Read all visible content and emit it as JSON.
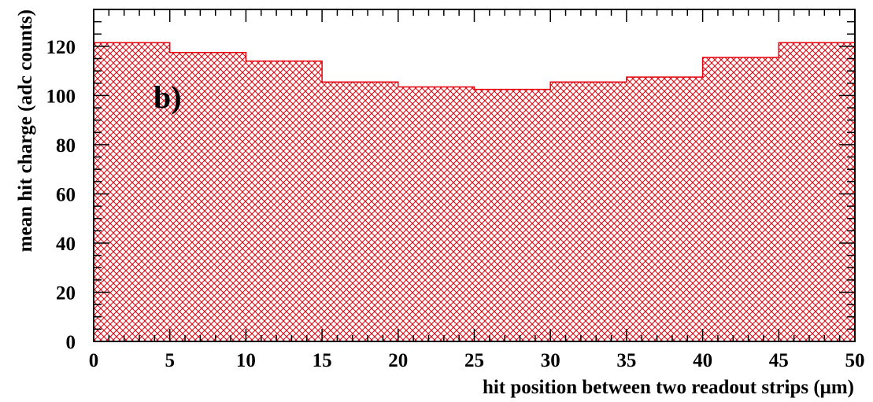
{
  "chart_data": {
    "type": "bar",
    "panel_label": "b)",
    "xlabel": "hit position between two readout strips (μm)",
    "ylabel": "mean hit charge (adc counts)",
    "xlim": [
      0,
      50
    ],
    "ylim": [
      0,
      135
    ],
    "bins": [
      [
        0,
        5
      ],
      [
        5,
        10
      ],
      [
        10,
        15
      ],
      [
        15,
        20
      ],
      [
        20,
        25
      ],
      [
        25,
        30
      ],
      [
        30,
        35
      ],
      [
        35,
        40
      ],
      [
        40,
        45
      ],
      [
        45,
        50
      ]
    ],
    "values": [
      121.5,
      117.5,
      114.0,
      105.5,
      103.5,
      102.5,
      105.5,
      107.5,
      115.5,
      121.5
    ],
    "x_ticks": [
      0,
      5,
      10,
      15,
      20,
      25,
      30,
      35,
      40,
      45,
      50
    ],
    "x_tick_labels": [
      "0",
      "5",
      "10",
      "15",
      "20",
      "25",
      "30",
      "35",
      "40",
      "45",
      "50"
    ],
    "y_ticks": [
      0,
      20,
      40,
      60,
      80,
      100,
      120
    ],
    "y_tick_labels": [
      "0",
      "20",
      "40",
      "60",
      "80",
      "100",
      "120"
    ],
    "fill_style": "cross-hatch",
    "colors": {
      "fill": "#e8000b",
      "axes": "#000000",
      "background": "#ffffff"
    },
    "grid": false,
    "legend": false
  }
}
